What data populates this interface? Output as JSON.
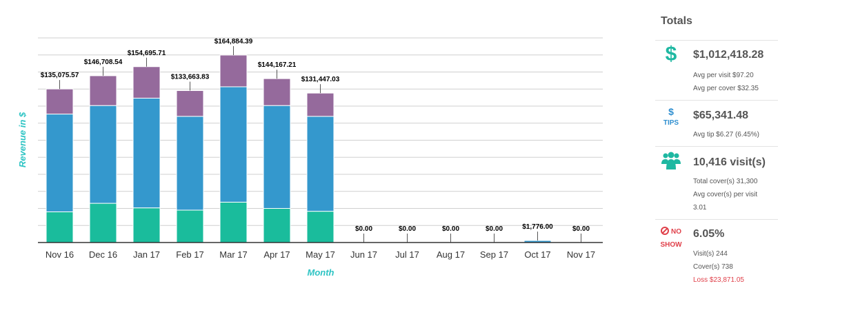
{
  "chart_data": {
    "type": "bar",
    "stacked": true,
    "xlabel": "Month",
    "ylabel": "Revenue in $",
    "categories": [
      "Nov 16",
      "Dec 16",
      "Jan 17",
      "Feb 17",
      "Mar 17",
      "Apr 17",
      "May 17",
      "Jun 17",
      "Jul 17",
      "Aug 17",
      "Sep 17",
      "Oct 17",
      "Nov 17"
    ],
    "totals": [
      135075.57,
      146708.54,
      154695.71,
      133663.83,
      164884.39,
      144167.21,
      131447.03,
      0,
      0,
      0,
      0,
      1776.0,
      0
    ],
    "total_labels": [
      "$135,075.57",
      "$146,708.54",
      "$154,695.71",
      "$133,663.83",
      "$164,884.39",
      "$144,167.21",
      "$131,447.03",
      "$0.00",
      "$0.00",
      "$0.00",
      "$0.00",
      "$1,776.00",
      "$0.00"
    ],
    "series": [
      {
        "color": "#1abc9c",
        "values": [
          27000,
          34500,
          30500,
          28500,
          35500,
          30000,
          27500,
          0,
          0,
          0,
          0,
          0,
          0
        ]
      },
      {
        "color": "#3498cd",
        "values": [
          86000,
          86000,
          96500,
          82500,
          101500,
          90500,
          83500,
          0,
          0,
          0,
          0,
          1776,
          0
        ]
      },
      {
        "color": "#956a9c",
        "values": [
          22075.57,
          26208.54,
          27695.71,
          22663.83,
          27884.39,
          23667.21,
          20447.03,
          0,
          0,
          0,
          0,
          0,
          0
        ]
      }
    ],
    "ylim": [
      0,
      180000
    ],
    "grid": true,
    "axis_color": "#333333",
    "grid_color": "#cfcfcf",
    "xlabel_color": "#2ec4c4"
  },
  "totals_panel": {
    "title": "Totals",
    "revenue": {
      "icon": "dollar-icon",
      "value": "$1,012,418.28",
      "avg_visit": "Avg per visit $97.20",
      "avg_cover": "Avg per cover $32.35"
    },
    "tips": {
      "icon": "dollar-icon",
      "label": "TIPS",
      "value": "$65,341.48",
      "avg_tip": "Avg tip $6.27 (6.45%)"
    },
    "visits": {
      "icon": "users-icon",
      "value": "10,416 visit(s)",
      "total_covers": "Total cover(s) 31,300",
      "avg_covers_line1": "Avg cover(s) per visit",
      "avg_covers_line2": "3.01"
    },
    "noshow": {
      "icon": "prohibited-icon",
      "label_line1": "NO",
      "label_line2": "SHOW",
      "value": "6.05%",
      "visits": "Visit(s) 244",
      "covers": "Cover(s) 738",
      "loss": "Loss $23,871.05"
    }
  }
}
